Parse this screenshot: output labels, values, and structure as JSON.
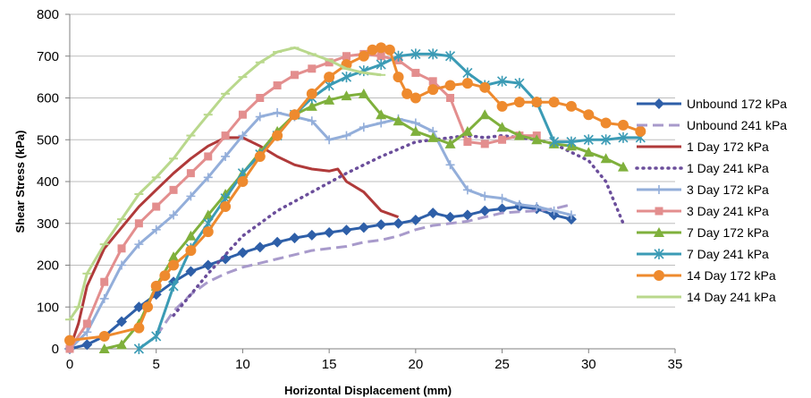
{
  "chart_data": {
    "type": "line",
    "title": "",
    "xlabel": "Horizontal Displacement (mm)",
    "ylabel": "Shear Stress (kPa)",
    "xlim": [
      0,
      35
    ],
    "ylim": [
      0,
      800
    ],
    "x_ticks": [
      0,
      5,
      10,
      15,
      20,
      25,
      30,
      35
    ],
    "y_ticks": [
      0,
      100,
      200,
      300,
      400,
      500,
      600,
      700,
      800
    ],
    "grid": "horizontal major gridlines",
    "legend_position": "right",
    "series": [
      {
        "name": "Unbound 172 kPa",
        "color": "#2E5FA8",
        "dash": "solid",
        "marker": "diamond",
        "points": [
          [
            0,
            0
          ],
          [
            1,
            10
          ],
          [
            2,
            30
          ],
          [
            3,
            65
          ],
          [
            4,
            100
          ],
          [
            5,
            130
          ],
          [
            6,
            160
          ],
          [
            7,
            185
          ],
          [
            8,
            200
          ],
          [
            9,
            215
          ],
          [
            10,
            230
          ],
          [
            11,
            243
          ],
          [
            12,
            255
          ],
          [
            13,
            265
          ],
          [
            14,
            272
          ],
          [
            15,
            278
          ],
          [
            16,
            284
          ],
          [
            17,
            290
          ],
          [
            18,
            297
          ],
          [
            19,
            300
          ],
          [
            20,
            308
          ],
          [
            21,
            325
          ],
          [
            22,
            315
          ],
          [
            23,
            320
          ],
          [
            24,
            330
          ],
          [
            25,
            335
          ],
          [
            26,
            340
          ],
          [
            27,
            335
          ],
          [
            28,
            320
          ],
          [
            29,
            310
          ]
        ]
      },
      {
        "name": "Unbound 241 kPa",
        "color": "#A89ACB",
        "dash": "dashed",
        "marker": "none",
        "points": [
          [
            5,
            30
          ],
          [
            6,
            90
          ],
          [
            7,
            130
          ],
          [
            8,
            160
          ],
          [
            9,
            180
          ],
          [
            10,
            195
          ],
          [
            11,
            205
          ],
          [
            12,
            215
          ],
          [
            13,
            225
          ],
          [
            14,
            235
          ],
          [
            15,
            240
          ],
          [
            16,
            245
          ],
          [
            17,
            255
          ],
          [
            18,
            260
          ],
          [
            19,
            270
          ],
          [
            20,
            285
          ],
          [
            21,
            295
          ],
          [
            22,
            300
          ],
          [
            23,
            305
          ],
          [
            24,
            315
          ],
          [
            25,
            325
          ],
          [
            26,
            328
          ],
          [
            27,
            330
          ],
          [
            28,
            335
          ],
          [
            29,
            345
          ]
        ]
      },
      {
        "name": "1 Day 172 kPa",
        "color": "#B03A3A",
        "dash": "solid",
        "marker": "none",
        "points": [
          [
            0,
            0
          ],
          [
            0.5,
            60
          ],
          [
            1,
            150
          ],
          [
            2,
            240
          ],
          [
            3,
            290
          ],
          [
            4,
            340
          ],
          [
            5,
            380
          ],
          [
            6,
            420
          ],
          [
            7,
            455
          ],
          [
            8,
            485
          ],
          [
            9,
            505
          ],
          [
            10,
            505
          ],
          [
            11,
            485
          ],
          [
            12,
            460
          ],
          [
            13,
            440
          ],
          [
            14,
            430
          ],
          [
            15,
            425
          ],
          [
            15.5,
            430
          ],
          [
            16,
            400
          ],
          [
            17,
            375
          ],
          [
            18,
            330
          ],
          [
            19,
            315
          ]
        ]
      },
      {
        "name": "1 Day 241 kPa",
        "color": "#6B4E9B",
        "dash": "dotted",
        "marker": "none",
        "points": [
          [
            6,
            80
          ],
          [
            8,
            180
          ],
          [
            10,
            270
          ],
          [
            12,
            330
          ],
          [
            14,
            375
          ],
          [
            16,
            420
          ],
          [
            18,
            460
          ],
          [
            20,
            495
          ],
          [
            21,
            500
          ],
          [
            22,
            505
          ],
          [
            23,
            510
          ],
          [
            24,
            505
          ],
          [
            25,
            510
          ],
          [
            26,
            505
          ],
          [
            27,
            500
          ],
          [
            28,
            490
          ],
          [
            29,
            470
          ],
          [
            30,
            450
          ],
          [
            31,
            400
          ],
          [
            32,
            300
          ]
        ]
      },
      {
        "name": "3 Day 172 kPa",
        "color": "#93AEDA",
        "dash": "solid",
        "marker": "plus",
        "points": [
          [
            0,
            0
          ],
          [
            1,
            40
          ],
          [
            2,
            120
          ],
          [
            3,
            200
          ],
          [
            4,
            250
          ],
          [
            5,
            285
          ],
          [
            6,
            320
          ],
          [
            7,
            365
          ],
          [
            8,
            410
          ],
          [
            9,
            460
          ],
          [
            10,
            510
          ],
          [
            11,
            555
          ],
          [
            12,
            565
          ],
          [
            13,
            555
          ],
          [
            14,
            545
          ],
          [
            15,
            500
          ],
          [
            16,
            510
          ],
          [
            17,
            530
          ],
          [
            18,
            540
          ],
          [
            19,
            550
          ],
          [
            20,
            540
          ],
          [
            21,
            520
          ],
          [
            22,
            440
          ],
          [
            23,
            380
          ],
          [
            24,
            365
          ],
          [
            25,
            360
          ],
          [
            26,
            345
          ],
          [
            27,
            340
          ],
          [
            28,
            330
          ],
          [
            29,
            320
          ]
        ]
      },
      {
        "name": "3 Day 241 kPa",
        "color": "#E38E8E",
        "dash": "solid",
        "marker": "square",
        "points": [
          [
            0,
            0
          ],
          [
            1,
            60
          ],
          [
            2,
            160
          ],
          [
            3,
            240
          ],
          [
            4,
            300
          ],
          [
            5,
            340
          ],
          [
            6,
            380
          ],
          [
            7,
            420
          ],
          [
            8,
            460
          ],
          [
            9,
            510
          ],
          [
            10,
            560
          ],
          [
            11,
            600
          ],
          [
            12,
            630
          ],
          [
            13,
            655
          ],
          [
            14,
            670
          ],
          [
            15,
            685
          ],
          [
            16,
            700
          ],
          [
            17,
            705
          ],
          [
            18,
            700
          ],
          [
            19,
            690
          ],
          [
            20,
            660
          ],
          [
            21,
            640
          ],
          [
            22,
            600
          ],
          [
            23,
            495
          ],
          [
            24,
            490
          ],
          [
            25,
            500
          ],
          [
            26,
            510
          ],
          [
            27,
            510
          ]
        ]
      },
      {
        "name": "7 Day 172 kPa",
        "color": "#7FB03C",
        "dash": "solid",
        "marker": "triangle",
        "points": [
          [
            2,
            0
          ],
          [
            3,
            10
          ],
          [
            4,
            60
          ],
          [
            5,
            150
          ],
          [
            6,
            220
          ],
          [
            7,
            270
          ],
          [
            8,
            320
          ],
          [
            9,
            370
          ],
          [
            10,
            420
          ],
          [
            11,
            470
          ],
          [
            12,
            520
          ],
          [
            13,
            560
          ],
          [
            14,
            580
          ],
          [
            15,
            595
          ],
          [
            16,
            605
          ],
          [
            17,
            610
          ],
          [
            18,
            560
          ],
          [
            19,
            545
          ],
          [
            20,
            520
          ],
          [
            21,
            505
          ],
          [
            22,
            490
          ],
          [
            23,
            520
          ],
          [
            24,
            560
          ],
          [
            25,
            530
          ],
          [
            26,
            510
          ],
          [
            27,
            500
          ],
          [
            28,
            490
          ],
          [
            29,
            485
          ],
          [
            30,
            470
          ],
          [
            31,
            455
          ],
          [
            32,
            435
          ]
        ]
      },
      {
        "name": "7 Day 241 kPa",
        "color": "#3B9BB5",
        "dash": "solid",
        "marker": "star",
        "points": [
          [
            4,
            0
          ],
          [
            5,
            30
          ],
          [
            6,
            150
          ],
          [
            7,
            240
          ],
          [
            8,
            300
          ],
          [
            9,
            360
          ],
          [
            10,
            420
          ],
          [
            11,
            465
          ],
          [
            12,
            510
          ],
          [
            13,
            560
          ],
          [
            14,
            600
          ],
          [
            15,
            630
          ],
          [
            16,
            650
          ],
          [
            17,
            665
          ],
          [
            18,
            680
          ],
          [
            19,
            700
          ],
          [
            20,
            705
          ],
          [
            21,
            705
          ],
          [
            22,
            700
          ],
          [
            23,
            660
          ],
          [
            24,
            630
          ],
          [
            25,
            640
          ],
          [
            26,
            635
          ],
          [
            27,
            590
          ],
          [
            28,
            495
          ],
          [
            29,
            495
          ],
          [
            30,
            500
          ],
          [
            31,
            500
          ],
          [
            32,
            505
          ],
          [
            33,
            505
          ]
        ]
      },
      {
        "name": "14 Day 172 kPa",
        "color": "#EE8A2E",
        "dash": "solid",
        "marker": "circle",
        "points": [
          [
            0,
            20
          ],
          [
            2,
            30
          ],
          [
            4,
            50
          ],
          [
            4.5,
            100
          ],
          [
            5,
            150
          ],
          [
            5.5,
            175
          ],
          [
            6,
            200
          ],
          [
            7,
            235
          ],
          [
            8,
            280
          ],
          [
            9,
            340
          ],
          [
            10,
            400
          ],
          [
            11,
            460
          ],
          [
            12,
            510
          ],
          [
            13,
            560
          ],
          [
            14,
            610
          ],
          [
            15,
            650
          ],
          [
            16,
            680
          ],
          [
            17,
            700
          ],
          [
            17.5,
            715
          ],
          [
            18,
            720
          ],
          [
            18.5,
            715
          ],
          [
            19,
            650
          ],
          [
            19.5,
            610
          ],
          [
            20,
            600
          ],
          [
            21,
            620
          ],
          [
            22,
            630
          ],
          [
            23,
            635
          ],
          [
            24,
            625
          ],
          [
            25,
            580
          ],
          [
            26,
            590
          ],
          [
            27,
            590
          ],
          [
            28,
            590
          ],
          [
            29,
            580
          ],
          [
            30,
            560
          ],
          [
            31,
            540
          ],
          [
            32,
            535
          ],
          [
            33,
            520
          ]
        ]
      },
      {
        "name": "14 Day 241 kPa",
        "color": "#B9D88C",
        "dash": "solid",
        "marker": "bar",
        "points": [
          [
            0,
            70
          ],
          [
            0.5,
            100
          ],
          [
            1,
            180
          ],
          [
            2,
            250
          ],
          [
            3,
            310
          ],
          [
            4,
            370
          ],
          [
            5,
            410
          ],
          [
            6,
            455
          ],
          [
            7,
            510
          ],
          [
            8,
            560
          ],
          [
            9,
            610
          ],
          [
            10,
            650
          ],
          [
            11,
            685
          ],
          [
            12,
            710
          ],
          [
            13,
            720
          ],
          [
            14,
            705
          ],
          [
            15,
            690
          ],
          [
            16,
            670
          ],
          [
            17,
            660
          ],
          [
            18,
            655
          ]
        ]
      }
    ]
  }
}
